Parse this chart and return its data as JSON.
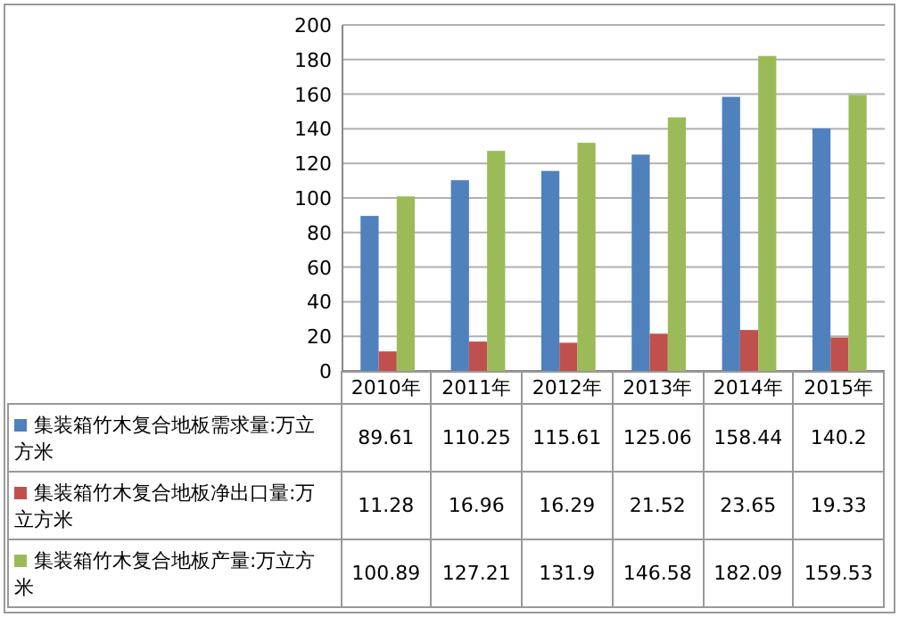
{
  "chart_data": {
    "type": "bar",
    "categories": [
      "2010年",
      "2011年",
      "2012年",
      "2013年",
      "2014年",
      "2015年"
    ],
    "series": [
      {
        "name": "集装箱竹木复合地板需求量:万立方米",
        "color": "#4f81bd",
        "values": [
          89.61,
          110.25,
          115.61,
          125.06,
          158.44,
          140.2
        ]
      },
      {
        "name": "集装箱竹木复合地板净出口量:万立方米",
        "color": "#c0504d",
        "values": [
          11.28,
          16.96,
          16.29,
          21.52,
          23.65,
          19.33
        ]
      },
      {
        "name": "集装箱竹木复合地板产量:万立方米",
        "color": "#9bbb59",
        "values": [
          100.89,
          127.21,
          131.9,
          146.58,
          182.09,
          159.53
        ]
      }
    ],
    "ylim": [
      0,
      200
    ],
    "yticks": [
      0,
      20,
      40,
      60,
      80,
      100,
      120,
      140,
      160,
      180,
      200
    ],
    "grid": "y",
    "legend": "bottom",
    "data_labels": true
  }
}
